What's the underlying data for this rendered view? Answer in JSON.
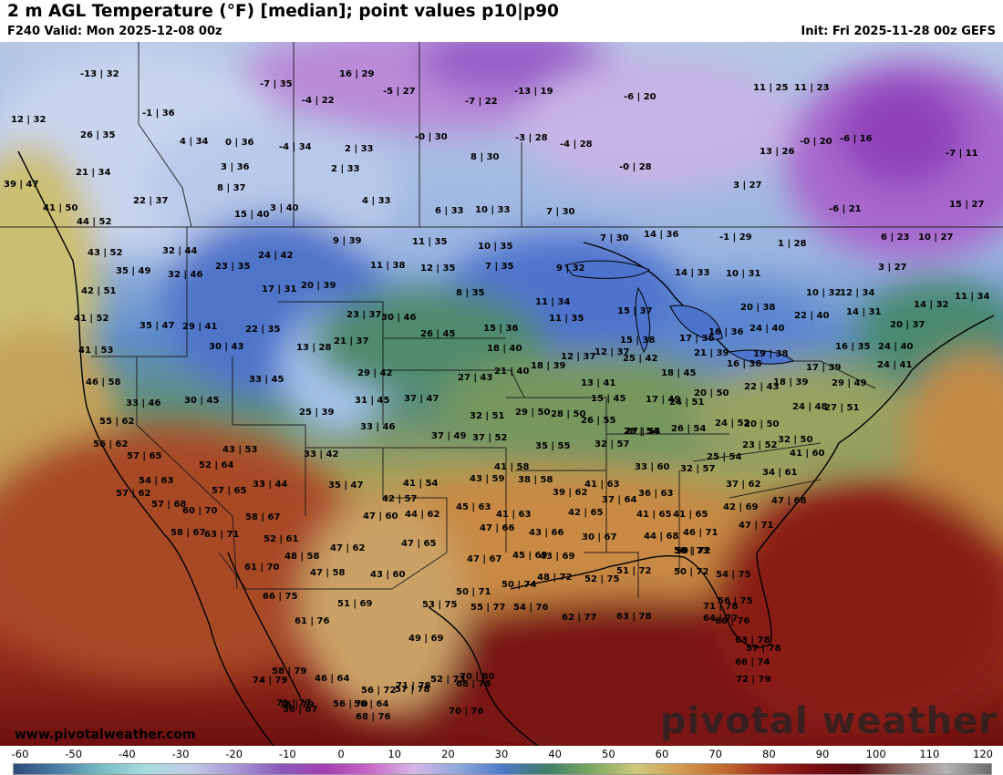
{
  "header": {
    "title": "2 m AGL Temperature (°F) [median]; point values p10|p90",
    "valid": "F240 Valid: Mon 2025-12-08 00z",
    "init": "Init: Fri 2025-11-28 00z GEFS"
  },
  "footer": {
    "website": "www.pivotalweather.com",
    "brand": "pivotal weather"
  },
  "colorbar": {
    "ticks": [
      "-60",
      "-50",
      "-40",
      "-30",
      "-20",
      "-10",
      "0",
      "10",
      "20",
      "30",
      "40",
      "50",
      "60",
      "70",
      "80",
      "90",
      "100",
      "110",
      "120"
    ],
    "range": [
      -60,
      120
    ],
    "units": "°F"
  },
  "points": [
    "-13|32",
    "16|29",
    "-7|35",
    "-5|27",
    "-13|19",
    "-6|20",
    "11|25",
    "11|23",
    "12|32",
    "-1|36",
    "-4|22",
    "-7|22",
    "26|35",
    "4|34",
    "0|36",
    "-4|34",
    "2|33",
    "-0|30",
    "-3|28",
    "-4|28",
    "13|26",
    "-0|20",
    "-6|16",
    "21|34",
    "3|36",
    "2|33",
    "8|30",
    "-0|28",
    "-7|11",
    "39|47",
    "22|37",
    "8|37",
    "15|40",
    "3|40",
    "4|33",
    "6|33",
    "10|33",
    "7|30",
    "3|27",
    "-6|21",
    "15|27",
    "41|50",
    "44|52",
    "32|44",
    "24|42",
    "9|39",
    "11|35",
    "10|35",
    "7|30",
    "14|36",
    "-1|29",
    "1|28",
    "6|23",
    "10|27",
    "43|52",
    "35|49",
    "32|46",
    "23|35",
    "11|38",
    "12|35",
    "7|35",
    "9|32",
    "14|33",
    "10|31",
    "3|27",
    "42|51",
    "17|31",
    "20|39",
    "8|35",
    "11|34",
    "15|37",
    "10|32",
    "12|34",
    "14|32",
    "11|34",
    "41|52",
    "35|47",
    "29|41",
    "22|35",
    "23|37",
    "30|46",
    "15|36",
    "11|35",
    "20|38",
    "24|40",
    "22|40",
    "14|31",
    "20|37",
    "41|53",
    "30|43",
    "13|28",
    "21|37",
    "26|45",
    "18|40",
    "15|38",
    "17|36",
    "16|36",
    "19|38",
    "16|35",
    "24|40",
    "46|58",
    "33|45",
    "29|42",
    "18|39",
    "12|37",
    "12|37",
    "25|42",
    "18|45",
    "21|39",
    "16|38",
    "17|39",
    "24|41",
    "33|46",
    "30|45",
    "27|43",
    "21|40",
    "13|41",
    "22|43",
    "18|39",
    "29|49",
    "37|47",
    "15|45",
    "17|49",
    "20|50",
    "24|48",
    "27|51",
    "55|62",
    "25|39",
    "31|45",
    "32|51",
    "29|50",
    "28|50",
    "26|55",
    "24|51",
    "24|52",
    "20|50",
    "27|54",
    "56|62",
    "33|46",
    "37|49",
    "37|52",
    "28|54",
    "26|54",
    "23|52",
    "32|50",
    "57|65",
    "43|53",
    "33|42",
    "35|55",
    "32|57",
    "25|54",
    "41|60",
    "52|64",
    "41|58",
    "33|60",
    "32|57",
    "54|63",
    "33|44",
    "35|47",
    "41|54",
    "43|59",
    "38|58",
    "41|63",
    "34|61",
    "57|62",
    "57|68",
    "57|65",
    "42|57",
    "39|62",
    "36|63",
    "37|62",
    "60|70",
    "58|67",
    "47|60",
    "44|62",
    "45|63",
    "41|63",
    "37|64",
    "42|69",
    "47|68",
    "58|67",
    "63|71",
    "52|61",
    "41|65",
    "47|66",
    "43|66",
    "42|65",
    "41|65",
    "47|71",
    "47|62",
    "47|65",
    "46|71",
    "44|68",
    "50|72",
    "48|58",
    "30|67",
    "47|67",
    "45|69",
    "43|69",
    "50|73",
    "61|70",
    "47|58",
    "43|60",
    "48|72",
    "51|72",
    "50|72",
    "54|75",
    "50|74",
    "52|75",
    "56|75",
    "66|75",
    "50|71",
    "51|69",
    "53|75",
    "55|77",
    "54|76",
    "62|77",
    "63|78",
    "64|77",
    "63|78",
    "66|74",
    "57|78",
    "61|76",
    "49|69",
    "71|78",
    "66|76",
    "72|79",
    "58|79",
    "46|64",
    "52|73",
    "68|78",
    "70|80",
    "74|79",
    "56|67",
    "68|76",
    "56|72",
    "57|78",
    "71|78",
    "71|77",
    "56|64",
    "70|76",
    "75|79",
    "56|70"
  ]
}
